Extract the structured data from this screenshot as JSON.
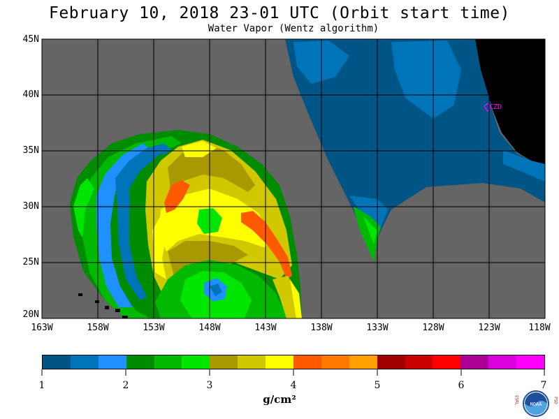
{
  "title": "February 10, 2018  23-01 UTC  (Orbit start time)",
  "subtitle": "Water Vapor (Wentz algorithm)",
  "map": {
    "lat_labels": [
      "45N",
      "40N",
      "35N",
      "30N",
      "25N",
      "20N"
    ],
    "lon_labels": [
      "163W",
      "158W",
      "153W",
      "148W",
      "143W",
      "138W",
      "133W",
      "128W",
      "123W",
      "118W"
    ],
    "station_label": "CZD",
    "colors": {
      "no_data": "#656565",
      "land": "#000000",
      "station": "#ff00ff"
    }
  },
  "colorbar": {
    "colors": [
      "#005587",
      "#0074b9",
      "#1e90ff",
      "#008c00",
      "#00b900",
      "#00e600",
      "#a89900",
      "#d2c800",
      "#ffff00",
      "#ff5a00",
      "#ff7800",
      "#ffa000",
      "#a00000",
      "#c80000",
      "#ff0000",
      "#aa0096",
      "#dc00dc",
      "#ff00ff"
    ],
    "ticks": [
      "1",
      "2",
      "3",
      "4",
      "5",
      "6",
      "7"
    ],
    "unit": "g/cm²"
  },
  "logo": {
    "left_text": "ESRL",
    "right_text": "PSD",
    "center_text": "NOAA"
  }
}
